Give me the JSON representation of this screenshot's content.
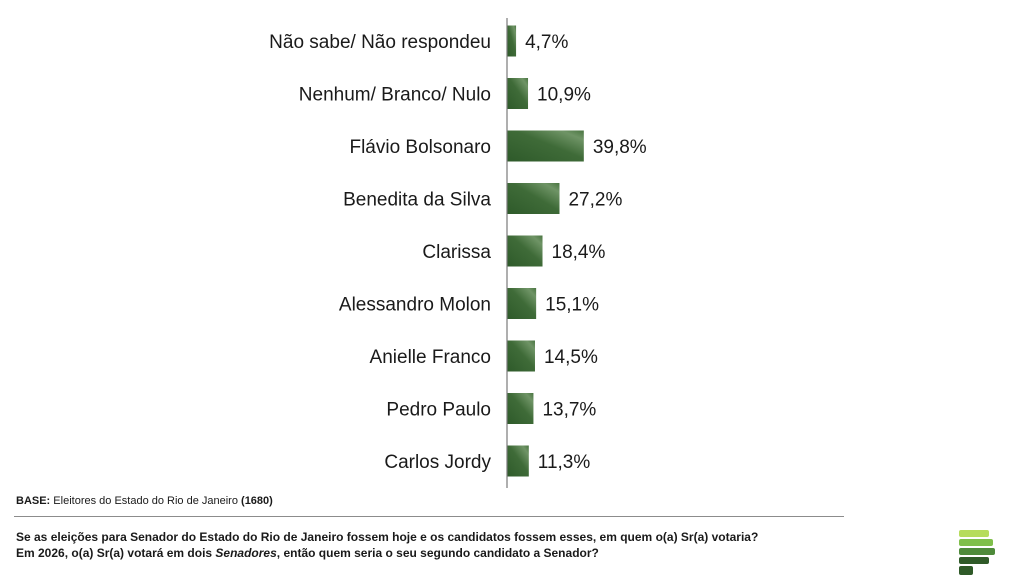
{
  "chart_data": {
    "type": "bar",
    "orientation": "horizontal",
    "categories": [
      "Não sabe/ Não respondeu",
      "Nenhum/ Branco/ Nulo",
      "Flávio Bolsonaro",
      "Benedita da Silva",
      "Clarissa",
      "Alessandro Molon",
      "Anielle Franco",
      "Pedro Paulo",
      "Carlos Jordy"
    ],
    "values": [
      4.7,
      10.9,
      39.8,
      27.2,
      18.4,
      15.1,
      14.5,
      13.7,
      11.3
    ],
    "value_labels": [
      "4,7%",
      "10,9%",
      "39,8%",
      "27,2%",
      "18,4%",
      "15,1%",
      "14,5%",
      "13,7%",
      "11,3%"
    ],
    "title": "",
    "xlabel": "",
    "ylabel": "",
    "xlim": [
      0,
      100
    ],
    "grid": false,
    "legend": "none",
    "bar_color": "#3f6b38"
  },
  "footer": {
    "base_label": "BASE:",
    "base_text": "Eleitores do Estado do Rio de Janeiro",
    "base_count": "(1680)",
    "question": {
      "p1": "Se as eleições para ",
      "b1": "Senador",
      "p2": " do Estado do Rio de Janeiro fossem hoje e os candidatos fossem esses, em quem o(a) ",
      "b2": "Sr",
      "p3": "(a) votaria?",
      "p4": "Em 2026, o(a) ",
      "b3": "Sr",
      "p5": "(a) votará em dois ",
      "i1": "Senadores",
      "p6": ", então quem seria o seu segundo candidato a Senador?"
    }
  },
  "logo": {
    "name": "pollster-logo",
    "colors": [
      "#2f5a28",
      "#4e8a3a",
      "#7fbf4a",
      "#b6dc5c"
    ]
  }
}
